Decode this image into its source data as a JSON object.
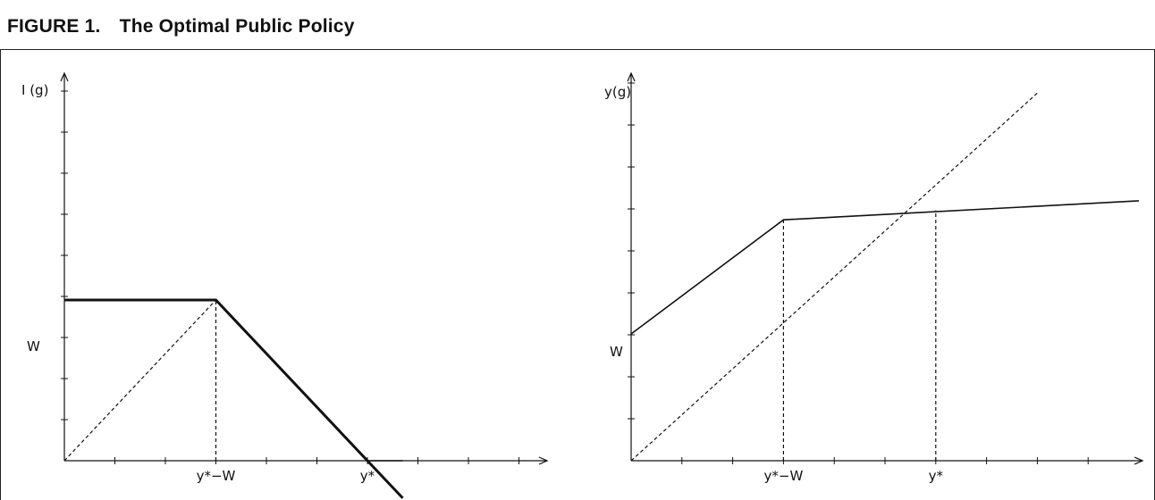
{
  "figure": {
    "title": "FIGURE 1. The Optimal Public Policy"
  },
  "chart_data": [
    {
      "type": "line",
      "ylabel": "I (g)",
      "y_tick_labels": [
        {
          "label": "W",
          "value": 4
        }
      ],
      "x_tick_labels": [
        {
          "label": "y*−W",
          "value": 3
        },
        {
          "label": "y*",
          "value": 6
        }
      ],
      "xlim": [
        0,
        11
      ],
      "ylim": [
        0,
        12
      ],
      "series": [
        {
          "style": "solid",
          "x": [
            0,
            3,
            6,
            6.7
          ],
          "y": [
            4,
            4,
            0,
            -0.93
          ]
        },
        {
          "style": "solid",
          "x": [
            6,
            6.7
          ],
          "y": [
            0,
            0
          ]
        },
        {
          "style": "dashed",
          "x": [
            0,
            3
          ],
          "y": [
            0,
            4
          ]
        },
        {
          "style": "dashed",
          "x": [
            3,
            3
          ],
          "y": [
            0,
            4
          ]
        }
      ]
    },
    {
      "type": "line",
      "ylabel": "y(g)",
      "y_tick_labels": [
        {
          "label": "W",
          "value": 4
        }
      ],
      "x_tick_labels": [
        {
          "label": "y*−W",
          "value": 3
        },
        {
          "label": "y*",
          "value": 6
        }
      ],
      "xlim": [
        0,
        10
      ],
      "ylim": [
        0,
        13
      ],
      "series": [
        {
          "style": "solid",
          "x": [
            0,
            3,
            10
          ],
          "y": [
            4,
            7.6,
            8.2
          ]
        },
        {
          "style": "dashed",
          "x": [
            0,
            8
          ],
          "y": [
            0,
            11.6
          ]
        },
        {
          "style": "dashed",
          "x": [
            3,
            3
          ],
          "y": [
            0,
            7.6
          ]
        },
        {
          "style": "dashed",
          "x": [
            6,
            6
          ],
          "y": [
            0,
            7.9
          ]
        }
      ]
    }
  ]
}
